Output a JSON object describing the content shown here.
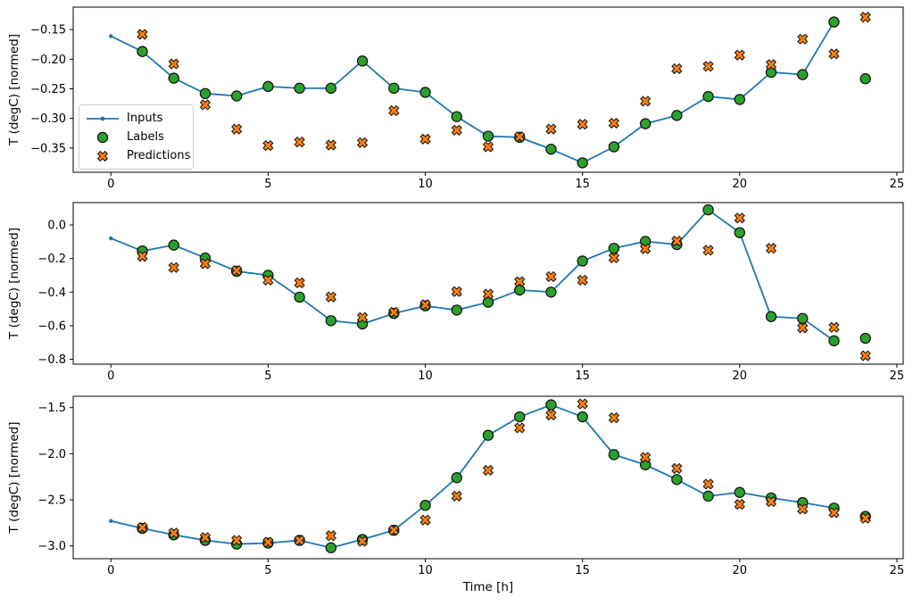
{
  "figure": {
    "background": "#ffffff",
    "xlabel": "Time [h]",
    "ylabel": "T (degC) [normed]",
    "colors": {
      "inputs": "#1f77b4",
      "labels": "#2ca02c",
      "predictions": "#ff7f0e",
      "marker_edge": "#111111",
      "axis": "#000000",
      "legend_border": "#cccccc"
    }
  },
  "legend": {
    "items": [
      {
        "label": "Inputs",
        "marker": "line-with-dot",
        "color": "#1f77b4"
      },
      {
        "label": "Labels",
        "marker": "circle",
        "color": "#2ca02c"
      },
      {
        "label": "Predictions",
        "marker": "x-cross",
        "color": "#ff7f0e"
      }
    ]
  },
  "chart_data": [
    {
      "type": "line",
      "subplot": 1,
      "ylabel": "T (degC) [normed]",
      "xlim": [
        -1.2,
        25.2
      ],
      "ylim": [
        -0.391,
        -0.112
      ],
      "xticks": [
        0,
        5,
        10,
        15,
        20,
        25
      ],
      "yticks": [
        -0.15,
        -0.2,
        -0.25,
        -0.3,
        -0.35
      ],
      "ytick_labels": [
        "−0.15",
        "−0.20",
        "−0.25",
        "−0.30",
        "−0.35"
      ],
      "grid": false,
      "series": [
        {
          "name": "Inputs",
          "type": "line",
          "marker": "dot",
          "color": "#1f77b4",
          "x_start": 0,
          "y": [
            -0.161,
            -0.187,
            -0.232,
            -0.258,
            -0.262,
            -0.246,
            -0.249,
            -0.249,
            -0.203,
            -0.249,
            -0.256,
            -0.297,
            -0.33,
            -0.332,
            -0.352,
            -0.375,
            -0.348,
            -0.309,
            -0.295,
            -0.263,
            -0.268,
            -0.222,
            -0.226,
            -0.137
          ]
        },
        {
          "name": "Labels",
          "type": "scatter",
          "marker": "circle",
          "color": "#2ca02c",
          "x_start": 1,
          "y": [
            -0.187,
            -0.232,
            -0.258,
            -0.262,
            -0.246,
            -0.249,
            -0.249,
            -0.203,
            -0.249,
            -0.256,
            -0.297,
            -0.33,
            -0.332,
            -0.352,
            -0.375,
            -0.348,
            -0.309,
            -0.295,
            -0.263,
            -0.268,
            -0.222,
            -0.226,
            -0.137,
            -0.233
          ]
        },
        {
          "name": "Predictions",
          "type": "scatter",
          "marker": "X",
          "color": "#ff7f0e",
          "x_start": 1,
          "y": [
            -0.158,
            -0.208,
            -0.277,
            -0.318,
            -0.346,
            -0.34,
            -0.345,
            -0.341,
            -0.287,
            -0.335,
            -0.32,
            -0.348,
            -0.331,
            -0.318,
            -0.31,
            -0.308,
            -0.271,
            -0.216,
            -0.212,
            -0.193,
            -0.209,
            -0.166,
            -0.191,
            -0.129
          ]
        }
      ]
    },
    {
      "type": "line",
      "subplot": 2,
      "ylabel": "T (degC) [normed]",
      "xlim": [
        -1.2,
        25.2
      ],
      "ylim": [
        -0.829,
        0.133
      ],
      "xticks": [
        0,
        5,
        10,
        15,
        20,
        25
      ],
      "yticks": [
        0.0,
        -0.2,
        -0.4,
        -0.6,
        -0.8
      ],
      "ytick_labels": [
        "0.0",
        "−0.2",
        "−0.4",
        "−0.6",
        "−0.8"
      ],
      "grid": false,
      "series": [
        {
          "name": "Inputs",
          "type": "line",
          "marker": "dot",
          "color": "#1f77b4",
          "x_start": 0,
          "y": [
            -0.08,
            -0.155,
            -0.12,
            -0.197,
            -0.276,
            -0.3,
            -0.43,
            -0.57,
            -0.59,
            -0.527,
            -0.482,
            -0.507,
            -0.46,
            -0.388,
            -0.4,
            -0.215,
            -0.139,
            -0.098,
            -0.117,
            0.09,
            -0.046,
            -0.546,
            -0.557,
            -0.69
          ]
        },
        {
          "name": "Labels",
          "type": "scatter",
          "marker": "circle",
          "color": "#2ca02c",
          "x_start": 1,
          "y": [
            -0.155,
            -0.12,
            -0.197,
            -0.276,
            -0.3,
            -0.43,
            -0.57,
            -0.59,
            -0.527,
            -0.482,
            -0.507,
            -0.46,
            -0.388,
            -0.4,
            -0.215,
            -0.139,
            -0.098,
            -0.117,
            0.09,
            -0.046,
            -0.546,
            -0.557,
            -0.69,
            -0.675
          ]
        },
        {
          "name": "Predictions",
          "type": "scatter",
          "marker": "X",
          "color": "#ff7f0e",
          "x_start": 1,
          "y": [
            -0.187,
            -0.254,
            -0.231,
            -0.272,
            -0.329,
            -0.345,
            -0.429,
            -0.551,
            -0.52,
            -0.475,
            -0.397,
            -0.412,
            -0.338,
            -0.308,
            -0.329,
            -0.196,
            -0.142,
            -0.096,
            -0.151,
            0.041,
            -0.139,
            -0.613,
            -0.61,
            -0.779
          ]
        }
      ]
    },
    {
      "type": "line",
      "subplot": 3,
      "ylabel": "T (degC) [normed]",
      "xlabel": "Time [h]",
      "xlim": [
        -1.2,
        25.2
      ],
      "ylim": [
        -3.139,
        -1.377
      ],
      "xticks": [
        0,
        5,
        10,
        15,
        20,
        25
      ],
      "yticks": [
        -1.5,
        -2.0,
        -2.5,
        -3.0
      ],
      "ytick_labels": [
        "−1.5",
        "−2.0",
        "−2.5",
        "−3.0"
      ],
      "grid": false,
      "series": [
        {
          "name": "Inputs",
          "type": "line",
          "marker": "dot",
          "color": "#1f77b4",
          "x_start": 0,
          "y": [
            -2.73,
            -2.81,
            -2.88,
            -2.94,
            -2.98,
            -2.97,
            -2.94,
            -3.02,
            -2.93,
            -2.83,
            -2.56,
            -2.26,
            -1.8,
            -1.6,
            -1.47,
            -1.6,
            -2.01,
            -2.12,
            -2.28,
            -2.46,
            -2.42,
            -2.48,
            -2.53,
            -2.59
          ]
        },
        {
          "name": "Labels",
          "type": "scatter",
          "marker": "circle",
          "color": "#2ca02c",
          "x_start": 1,
          "y": [
            -2.81,
            -2.88,
            -2.94,
            -2.98,
            -2.97,
            -2.94,
            -3.02,
            -2.93,
            -2.83,
            -2.56,
            -2.26,
            -1.8,
            -1.6,
            -1.47,
            -1.6,
            -2.01,
            -2.12,
            -2.28,
            -2.46,
            -2.42,
            -2.48,
            -2.53,
            -2.59,
            -2.68
          ]
        },
        {
          "name": "Predictions",
          "type": "scatter",
          "marker": "X",
          "color": "#ff7f0e",
          "x_start": 1,
          "y": [
            -2.8,
            -2.86,
            -2.91,
            -2.94,
            -2.96,
            -2.94,
            -2.89,
            -2.95,
            -2.83,
            -2.72,
            -2.46,
            -2.18,
            -1.72,
            -1.58,
            -1.46,
            -1.61,
            -2.04,
            -2.16,
            -2.33,
            -2.55,
            -2.52,
            -2.6,
            -2.64,
            -2.7
          ]
        }
      ]
    }
  ]
}
